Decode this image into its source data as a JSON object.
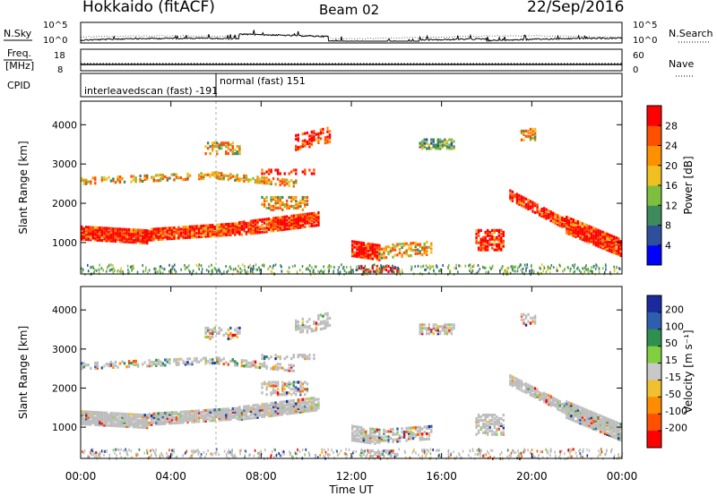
{
  "header": {
    "station": "Hokkaido (fitACF)",
    "beam": "Beam 02",
    "date": "22/Sep/2016"
  },
  "chart_data": [
    {
      "id": "noise",
      "type": "line",
      "left_label": "N.Sky",
      "right_label": "N.Search",
      "left_ticks": [
        "10^5",
        "10^0"
      ],
      "right_ticks": [
        "10^5",
        "10^0"
      ],
      "yscale": "log",
      "ylim": [
        1,
        100000
      ]
    },
    {
      "id": "freq",
      "type": "line",
      "left_label_top": "Freq.",
      "left_label_bottom": "[MHz]",
      "right_label": "Nave",
      "left_ticks": [
        18,
        8
      ],
      "right_ticks": [
        60,
        0
      ],
      "freq_value": 10.9,
      "nave_value": 20
    },
    {
      "id": "cpid",
      "type": "table",
      "label": "CPID",
      "modes": [
        {
          "name": "interleavedscan (fast)",
          "id": "-191"
        },
        {
          "name": "normal (fast)",
          "id": "151"
        }
      ],
      "switch_time": "06:00"
    },
    {
      "id": "power",
      "type": "heatmap",
      "ylabel": "Slant Range [km]",
      "yticks": [
        1000,
        2000,
        3000,
        4000
      ],
      "ylim": [
        200,
        4600
      ],
      "colorbar_label": "Power [dB]",
      "colorbar_ticks": [
        4,
        8,
        12,
        16,
        20,
        24,
        28
      ],
      "colorbar_range": [
        0,
        32
      ],
      "colors": [
        "#0000ff",
        "#2e4f9e",
        "#3d8a5a",
        "#7fbf40",
        "#f0c020",
        "#ff9000",
        "#ff5000",
        "#ff0000"
      ]
    },
    {
      "id": "velocity",
      "type": "heatmap",
      "ylabel": "Slant Range [km]",
      "yticks": [
        1000,
        2000,
        3000,
        4000
      ],
      "ylim": [
        200,
        4600
      ],
      "colorbar_label": "Velocity [m s⁻¹]",
      "colorbar_ticks": [
        "200",
        "100",
        "50",
        "15",
        "-15",
        "-50",
        "-100",
        "-200"
      ],
      "colors": [
        "#1a2a9e",
        "#2e5fae",
        "#2f8f4f",
        "#7fcf40",
        "#c8c8c8",
        "#f0c030",
        "#ff8c00",
        "#ff5000",
        "#ff0000"
      ],
      "ground_scatter_color": "#bcbcbc"
    }
  ],
  "xaxis": {
    "label": "Time UT",
    "ticks": [
      "00:00",
      "04:00",
      "08:00",
      "12:00",
      "16:00",
      "20:00",
      "00:00"
    ],
    "range_hours": [
      0,
      24
    ]
  }
}
